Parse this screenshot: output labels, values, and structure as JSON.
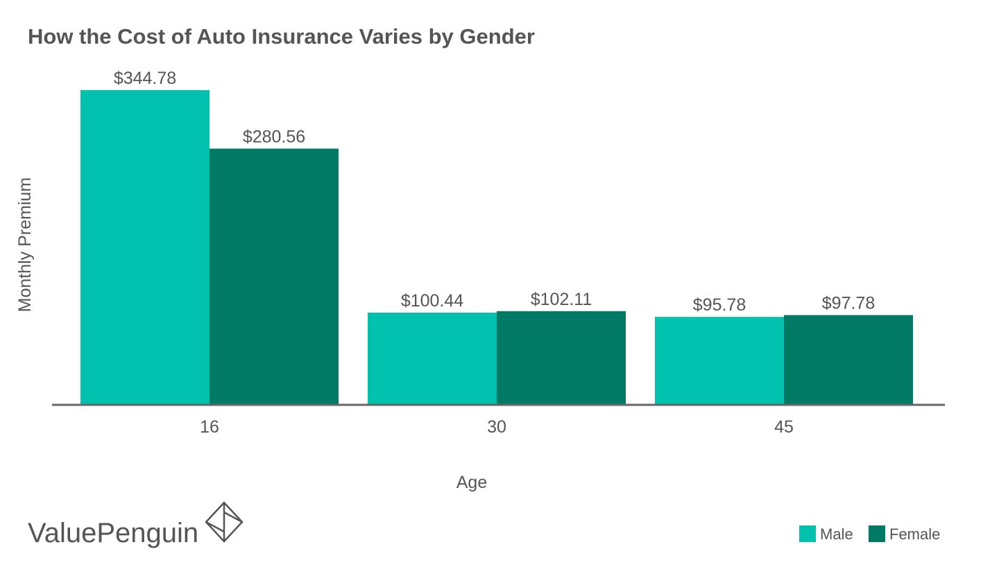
{
  "chart_data": {
    "type": "bar",
    "title": "How the Cost of Auto Insurance Varies by Gender",
    "xlabel": "Age",
    "ylabel": "Monthly Premium",
    "categories": [
      "16",
      "30",
      "45"
    ],
    "series": [
      {
        "name": "Male",
        "color": "#00c1ad",
        "values": [
          344.78,
          100.44,
          95.78
        ],
        "labels": [
          "$344.78",
          "$100.44",
          "$95.78"
        ]
      },
      {
        "name": "Female",
        "color": "#007965",
        "values": [
          280.56,
          102.11,
          97.78
        ],
        "labels": [
          "$280.56",
          "$102.11",
          "$97.78"
        ]
      }
    ],
    "ylim": [
      0,
      344.78
    ],
    "grid": false,
    "legend_position": "bottom-right"
  },
  "brand": {
    "name": "ValuePenguin",
    "logo_icon": "valuepenguin-logo-icon"
  },
  "colors": {
    "text": "#555555",
    "axis": "#666666"
  }
}
